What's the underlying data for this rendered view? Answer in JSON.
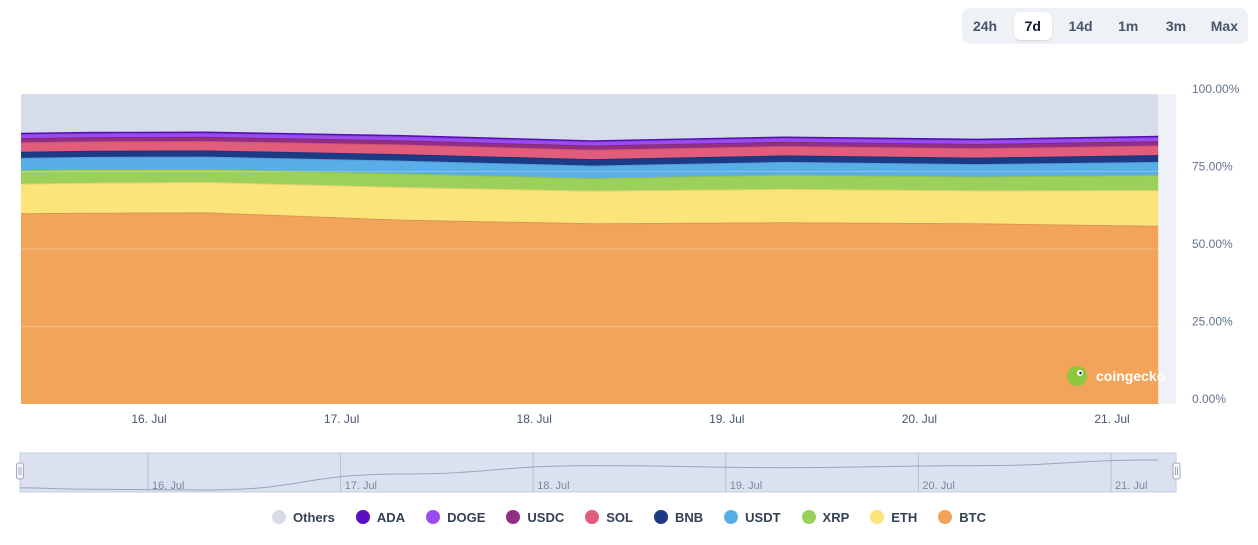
{
  "range_selector": {
    "options": [
      "24h",
      "7d",
      "14d",
      "1m",
      "3m",
      "Max"
    ],
    "selected": "7d"
  },
  "watermark": {
    "text": "coingecko"
  },
  "chart_data": {
    "type": "area",
    "stacked": true,
    "y_unit": "percent",
    "ylim": [
      0,
      100
    ],
    "y_ticks": [
      "100.00%",
      "75.00%",
      "50.00%",
      "25.00%",
      "0.00%"
    ],
    "x_tick_labels": [
      "16. Jul",
      "17. Jul",
      "18. Jul",
      "19. Jul",
      "20. Jul",
      "21. Jul"
    ],
    "x": [
      15.3,
      15.7,
      16.3,
      17.3,
      18.3,
      19.3,
      20.3,
      21.24
    ],
    "series": [
      {
        "name": "BTC",
        "color": "#f2a45a",
        "values": [
          61.5,
          61.7,
          61.8,
          59.5,
          58.3,
          58.6,
          58.3,
          57.5
        ]
      },
      {
        "name": "ETH",
        "color": "#fbe47a",
        "values": [
          9.6,
          9.7,
          9.8,
          10.5,
          10.5,
          10.8,
          10.6,
          11.5
        ]
      },
      {
        "name": "XRP",
        "color": "#9bd15b",
        "values": [
          4.3,
          4.3,
          4.2,
          4.4,
          4.1,
          4.6,
          4.5,
          4.9
        ]
      },
      {
        "name": "USDT",
        "color": "#5aaee6",
        "values": [
          4.0,
          4.0,
          4.0,
          4.1,
          4.0,
          4.1,
          4.0,
          4.2
        ]
      },
      {
        "name": "BNB",
        "color": "#1d3a84",
        "values": [
          2.0,
          2.0,
          2.0,
          2.1,
          2.1,
          2.1,
          2.1,
          2.2
        ]
      },
      {
        "name": "SOL",
        "color": "#e25d7b",
        "values": [
          3.0,
          3.0,
          3.0,
          3.1,
          3.0,
          3.0,
          3.0,
          3.1
        ]
      },
      {
        "name": "USDC",
        "color": "#932e85",
        "values": [
          1.4,
          1.4,
          1.4,
          1.4,
          1.4,
          1.4,
          1.4,
          1.4
        ]
      },
      {
        "name": "DOGE",
        "color": "#9b4cf0",
        "values": [
          1.2,
          1.2,
          1.2,
          1.2,
          1.2,
          1.2,
          1.2,
          1.2
        ]
      },
      {
        "name": "ADA",
        "color": "#5b0fc4",
        "values": [
          0.5,
          0.5,
          0.5,
          0.5,
          0.5,
          0.5,
          0.5,
          0.5
        ]
      },
      {
        "name": "Others",
        "color": "#d7dde8",
        "values": [
          12.5,
          12.2,
          12.1,
          13.2,
          14.9,
          13.7,
          14.4,
          13.5
        ]
      }
    ],
    "grid": true,
    "legend_position": "bottom-center",
    "navigator": {
      "x_tick_labels": [
        "16. Jul",
        "17. Jul",
        "18. Jul",
        "19. Jul",
        "20. Jul",
        "21. Jul"
      ]
    }
  },
  "legend_order": [
    "Others",
    "ADA",
    "DOGE",
    "USDC",
    "SOL",
    "BNB",
    "USDT",
    "XRP",
    "ETH",
    "BTC"
  ]
}
